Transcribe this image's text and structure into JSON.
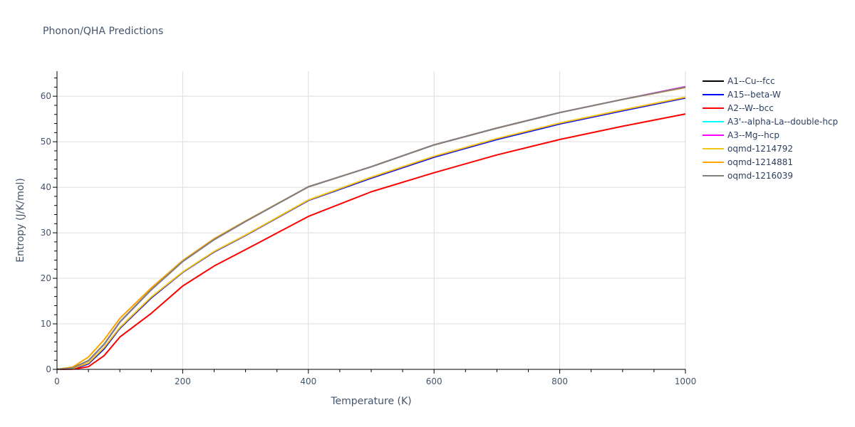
{
  "title": "Phonon/QHA Predictions",
  "chart_data": {
    "type": "line",
    "title": "Phonon/QHA Predictions",
    "xlabel": "Temperature (K)",
    "ylabel": "Entropy (J/K/mol)",
    "xlim": [
      0,
      1000
    ],
    "ylim": [
      0,
      65.5
    ],
    "xticks": [
      0,
      200,
      400,
      600,
      800,
      1000
    ],
    "yticks": [
      0,
      10,
      20,
      30,
      40,
      50,
      60
    ],
    "grid": true,
    "legend_position": "right",
    "x": [
      0,
      25,
      50,
      75,
      100,
      150,
      200,
      250,
      300,
      400,
      500,
      600,
      700,
      800,
      900,
      1000
    ],
    "series": [
      {
        "name": "A1--Cu--fcc",
        "color": "#000000",
        "values": [
          0,
          0.3,
          1.9,
          5.5,
          10.4,
          17.5,
          23.7,
          28.5,
          32.5,
          40.1,
          44.5,
          49.3,
          53.0,
          56.4,
          59.3,
          62.0
        ]
      },
      {
        "name": "A15--beta-W",
        "color": "#0000ff",
        "values": [
          0,
          0.1,
          1.2,
          4.5,
          9.0,
          15.7,
          21.3,
          25.8,
          29.4,
          37.1,
          42.0,
          46.6,
          50.5,
          53.9,
          56.8,
          59.6
        ]
      },
      {
        "name": "A2--W--bcc",
        "color": "#ff0000",
        "values": [
          0,
          0.05,
          0.6,
          3.0,
          7.1,
          12.3,
          18.3,
          22.7,
          26.3,
          33.6,
          39.0,
          43.2,
          47.1,
          50.5,
          53.4,
          56.1
        ]
      },
      {
        "name": "A3'--alpha-La--double-hcp",
        "color": "#00ffff",
        "values": [
          0,
          0.3,
          1.9,
          5.5,
          10.4,
          17.5,
          23.7,
          28.5,
          32.5,
          40.1,
          44.5,
          49.3,
          53.0,
          56.4,
          59.3,
          62.0
        ]
      },
      {
        "name": "A3--Mg--hcp",
        "color": "#ff00ff",
        "values": [
          0,
          0.3,
          1.9,
          5.5,
          10.4,
          17.5,
          23.7,
          28.5,
          32.5,
          40.1,
          44.5,
          49.3,
          53.0,
          56.4,
          59.3,
          62.1
        ]
      },
      {
        "name": "oqmd-1214792",
        "color": "#f5c518",
        "values": [
          0,
          0.2,
          1.4,
          4.8,
          9.2,
          15.9,
          21.4,
          25.9,
          29.5,
          37.2,
          42.2,
          46.8,
          50.7,
          54.1,
          57.0,
          59.8
        ]
      },
      {
        "name": "oqmd-1214881",
        "color": "#ffa500",
        "values": [
          0,
          0.5,
          2.7,
          6.5,
          11.2,
          17.9,
          23.9,
          28.7,
          32.6,
          40.1,
          44.5,
          49.3,
          53.0,
          56.4,
          59.3,
          61.9
        ]
      },
      {
        "name": "oqmd-1216039",
        "color": "#808080",
        "values": [
          0,
          0.3,
          1.9,
          5.5,
          10.4,
          17.5,
          23.7,
          28.5,
          32.5,
          40.1,
          44.5,
          49.3,
          53.0,
          56.4,
          59.3,
          62.0
        ]
      }
    ]
  }
}
